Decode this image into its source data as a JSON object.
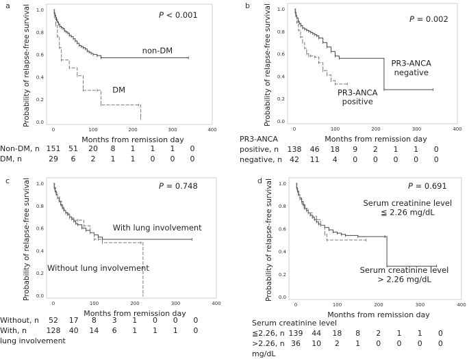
{
  "chart_data": [
    {
      "type": "line",
      "panel_letter": "a",
      "ylabel": "Probability of relapse-free survival",
      "xlabel": "Months from remission day",
      "xlim": [
        0,
        400
      ],
      "ylim": [
        0,
        1
      ],
      "xticks": [
        "0",
        "100",
        "200",
        "300",
        "400"
      ],
      "yticks": [
        "0.0",
        "0.2",
        "0.4",
        "0.6",
        "0.8",
        "1.0"
      ],
      "p_prefix": "P",
      "p_value": " < 0.001",
      "series": [
        {
          "name": "non-DM",
          "style": "solid",
          "color": "#444444",
          "x": [
            0,
            2,
            4,
            6,
            8,
            10,
            13,
            16,
            20,
            24,
            28,
            32,
            36,
            40,
            45,
            50,
            55,
            60,
            65,
            70,
            75,
            80,
            85,
            90,
            95,
            100,
            110,
            120,
            340
          ],
          "y": [
            1.0,
            0.97,
            0.95,
            0.93,
            0.91,
            0.89,
            0.87,
            0.85,
            0.84,
            0.83,
            0.81,
            0.8,
            0.79,
            0.77,
            0.76,
            0.74,
            0.72,
            0.7,
            0.68,
            0.67,
            0.66,
            0.65,
            0.63,
            0.62,
            0.61,
            0.6,
            0.59,
            0.57,
            0.57
          ]
        },
        {
          "name": "DM",
          "style": "dashed",
          "color": "#777777",
          "x": [
            0,
            3,
            6,
            10,
            15,
            20,
            40,
            60,
            75,
            110,
            120,
            215,
            220
          ],
          "y": [
            1.0,
            0.93,
            0.86,
            0.76,
            0.66,
            0.55,
            0.48,
            0.41,
            0.28,
            0.28,
            0.15,
            0.15,
            0.03
          ]
        }
      ],
      "annotations": [
        {
          "text": "non-DM",
          "x": 262,
          "y": 0.61
        },
        {
          "text": "DM",
          "x": 165,
          "y": 0.26
        }
      ],
      "risk_table": {
        "times": [
          0,
          50,
          100,
          150,
          200,
          250,
          300,
          350
        ],
        "rows": [
          {
            "label": "Non-DM, n",
            "values": [
              "151",
              "51",
              "20",
              "8",
              "1",
              "1",
              "1",
              "0"
            ]
          },
          {
            "label": "DM, n",
            "values": [
              "29",
              "6",
              "2",
              "1",
              "1",
              "0",
              "0",
              "0"
            ]
          }
        ]
      }
    },
    {
      "type": "line",
      "panel_letter": "b",
      "ylabel": "Probability of relapse-free survival",
      "xlabel": "Months from remission day",
      "xlim": [
        0,
        400
      ],
      "ylim": [
        0,
        1
      ],
      "xticks": [
        "0",
        "100",
        "200",
        "300",
        "400"
      ],
      "yticks": [
        "0.0",
        "0.2",
        "0.4",
        "0.6",
        "0.8",
        "1.0"
      ],
      "p_prefix": "P",
      "p_value": " = 0.002",
      "series": [
        {
          "name": "PR3-ANCA negative",
          "style": "solid",
          "color": "#444444",
          "x": [
            0,
            2,
            4,
            6,
            9,
            12,
            16,
            20,
            25,
            30,
            35,
            40,
            45,
            50,
            55,
            60,
            70,
            80,
            90,
            100,
            110,
            220,
            340
          ],
          "y": [
            1.0,
            0.97,
            0.94,
            0.92,
            0.89,
            0.87,
            0.85,
            0.83,
            0.82,
            0.81,
            0.8,
            0.79,
            0.78,
            0.77,
            0.76,
            0.74,
            0.7,
            0.66,
            0.62,
            0.58,
            0.56,
            0.28,
            0.28
          ]
        },
        {
          "name": "PR3-ANCA positive",
          "style": "dashed",
          "color": "#777777",
          "x": [
            0,
            3,
            6,
            10,
            15,
            20,
            25,
            30,
            35,
            40,
            50,
            60,
            70,
            80,
            90,
            100,
            130
          ],
          "y": [
            1.0,
            0.94,
            0.88,
            0.81,
            0.75,
            0.7,
            0.65,
            0.6,
            0.58,
            0.58,
            0.57,
            0.52,
            0.45,
            0.41,
            0.36,
            0.33,
            0.33
          ]
        }
      ],
      "annotations": [
        {
          "text": "PR3-ANCA",
          "x": 287,
          "y": 0.49
        },
        {
          "text": "negative",
          "x": 287,
          "y": 0.41
        },
        {
          "text": "PR3-ANCA",
          "x": 155,
          "y": 0.23
        },
        {
          "text": "positive",
          "x": 155,
          "y": 0.15
        }
      ],
      "risk_table": {
        "header": "PR3-ANCA",
        "times": [
          0,
          50,
          100,
          150,
          200,
          250,
          300,
          350
        ],
        "rows": [
          {
            "label": "positive, n",
            "values": [
              "138",
              "46",
              "18",
              "9",
              "2",
              "1",
              "1",
              "0"
            ]
          },
          {
            "label": "negative, n",
            "values": [
              "42",
              "11",
              "4",
              "0",
              "0",
              "0",
              "0",
              "0"
            ]
          }
        ]
      }
    },
    {
      "type": "line",
      "panel_letter": "c",
      "ylabel": "Probability of relapse-free survival",
      "xlabel": "Months from remission day",
      "xlim": [
        0,
        400
      ],
      "ylim": [
        0,
        1
      ],
      "xticks": [
        "0",
        "100",
        "200",
        "300",
        "400"
      ],
      "yticks": [
        "0.0",
        "0.2",
        "0.4",
        "0.6",
        "0.8",
        "1.0"
      ],
      "p_prefix": "P",
      "p_value": " = 0.748",
      "series": [
        {
          "name": "With lung involvement",
          "style": "solid",
          "color": "#444444",
          "x": [
            0,
            2,
            4,
            7,
            10,
            14,
            18,
            22,
            26,
            30,
            35,
            40,
            45,
            50,
            55,
            60,
            70,
            80,
            90,
            100,
            110,
            120,
            340
          ],
          "y": [
            1.0,
            0.96,
            0.93,
            0.9,
            0.87,
            0.84,
            0.81,
            0.78,
            0.76,
            0.74,
            0.72,
            0.7,
            0.68,
            0.66,
            0.64,
            0.63,
            0.6,
            0.58,
            0.56,
            0.54,
            0.52,
            0.5,
            0.5
          ]
        },
        {
          "name": "Without lung involvement",
          "style": "dashed",
          "color": "#777777",
          "x": [
            0,
            3,
            6,
            10,
            15,
            20,
            25,
            30,
            40,
            50,
            60,
            75,
            90,
            100,
            110,
            120,
            215,
            220
          ],
          "y": [
            1.0,
            0.96,
            0.92,
            0.88,
            0.84,
            0.8,
            0.76,
            0.73,
            0.69,
            0.67,
            0.67,
            0.62,
            0.56,
            0.5,
            0.5,
            0.47,
            0.47,
            0.0
          ]
        }
      ],
      "annotations": [
        {
          "text": "With lung involvement",
          "x": 255,
          "y": 0.58
        },
        {
          "text": "Without lung involvement",
          "x": 110,
          "y": 0.22
        }
      ],
      "risk_table": {
        "times": [
          0,
          50,
          100,
          150,
          200,
          250,
          300,
          350
        ],
        "rows": [
          {
            "label": "Without, n",
            "values": [
              "52",
              "17",
              "8",
              "3",
              "1",
              "0",
              "0",
              "0"
            ]
          },
          {
            "label": "With,    n",
            "values": [
              "128",
              "40",
              "14",
              "6",
              "1",
              "1",
              "1",
              "0"
            ]
          }
        ],
        "footer": "lung involvement"
      }
    },
    {
      "type": "line",
      "panel_letter": "d",
      "ylabel": "Probability of relapse-free survival",
      "xlabel": "Months from remission day",
      "xlim": [
        0,
        400
      ],
      "ylim": [
        0,
        1
      ],
      "xticks": [
        "0",
        "100",
        "200",
        "300",
        "400"
      ],
      "yticks": [
        "0.0",
        "0.2",
        "0.4",
        "0.6",
        "0.8",
        "1.0"
      ],
      "p_prefix": "P",
      "p_value": " = 0.691",
      "series": [
        {
          "name": "Serum creatinine level ≦ 2.26 mg/dL",
          "style": "solid",
          "color": "#444444",
          "x": [
            0,
            2,
            4,
            7,
            10,
            14,
            18,
            22,
            26,
            30,
            35,
            40,
            45,
            50,
            55,
            60,
            70,
            80,
            90,
            100,
            110,
            120,
            150,
            215,
            220,
            340
          ],
          "y": [
            1.0,
            0.96,
            0.93,
            0.9,
            0.87,
            0.84,
            0.81,
            0.78,
            0.76,
            0.74,
            0.72,
            0.7,
            0.68,
            0.66,
            0.64,
            0.63,
            0.61,
            0.59,
            0.57,
            0.56,
            0.55,
            0.54,
            0.53,
            0.53,
            0.27,
            0.27
          ]
        },
        {
          "name": "Serum creatinine level > 2.26 mg/dL",
          "style": "dashed",
          "color": "#777777",
          "x": [
            0,
            3,
            6,
            10,
            15,
            20,
            30,
            40,
            50,
            60,
            70,
            75,
            170
          ],
          "y": [
            1.0,
            0.95,
            0.9,
            0.86,
            0.82,
            0.78,
            0.74,
            0.71,
            0.68,
            0.63,
            0.55,
            0.5,
            0.5
          ]
        }
      ],
      "annotations": [
        {
          "text": "Serum creatinine level",
          "x": 270,
          "y": 0.8
        },
        {
          "text": "≦ 2.26 mg/dL",
          "x": 270,
          "y": 0.72
        },
        {
          "text": "Serum creatinine level",
          "x": 262,
          "y": 0.21
        },
        {
          "text": "> 2.26 mg/dL",
          "x": 262,
          "y": 0.13
        }
      ],
      "risk_table": {
        "header": "Serum creatinine level",
        "times": [
          0,
          50,
          100,
          150,
          200,
          250,
          300,
          350
        ],
        "rows": [
          {
            "label": "≦2.26, n",
            "values": [
              "139",
              "44",
              "18",
              "8",
              "2",
              "1",
              "1",
              "0"
            ]
          },
          {
            "label": ">2.26, n",
            "values": [
              "36",
              "10",
              "2",
              "1",
              "0",
              "0",
              "0",
              "0"
            ]
          }
        ],
        "footer": "mg/dL"
      }
    }
  ]
}
